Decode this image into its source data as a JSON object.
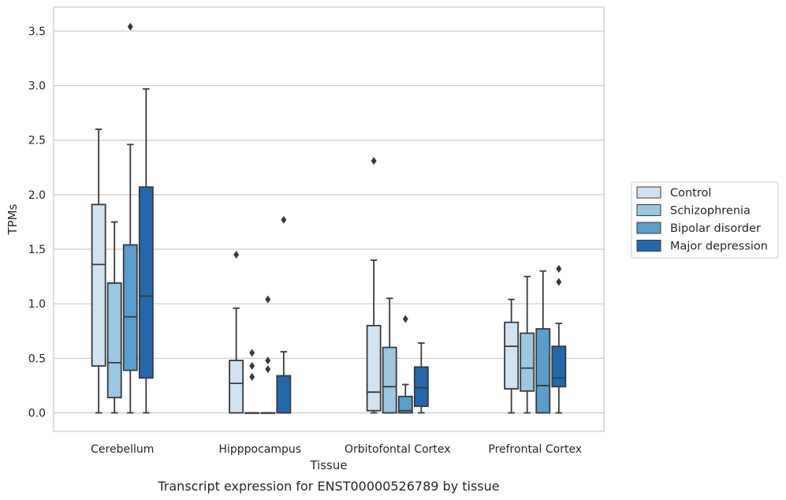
{
  "chart_data": {
    "type": "boxplot",
    "caption": "Transcript expression for ENST00000526789 by tissue",
    "xlabel": "Tissue",
    "ylabel": "TPMs",
    "ylim": [
      -0.17,
      3.72
    ],
    "yticks": [
      0.0,
      0.5,
      1.0,
      1.5,
      2.0,
      2.5,
      3.0,
      3.5
    ],
    "ytick_labels": [
      "0.0",
      "0.5",
      "1.0",
      "1.5",
      "2.0",
      "2.5",
      "3.0",
      "3.5"
    ],
    "grid": true,
    "legend_position": "right",
    "categories": [
      "Cerebellum",
      "Hipppocampus",
      "Orbitofontal Cortex",
      "Prefrontal Cortex"
    ],
    "series": [
      {
        "name": "Control",
        "color": "#d1e2f1",
        "boxes": [
          {
            "whislo": 0.0,
            "q1": 0.43,
            "med": 1.36,
            "q3": 1.91,
            "whishi": 2.6,
            "fliers": []
          },
          {
            "whislo": 0.0,
            "q1": 0.0,
            "med": 0.27,
            "q3": 0.48,
            "whishi": 0.96,
            "fliers": [
              1.45
            ]
          },
          {
            "whislo": 0.0,
            "q1": 0.02,
            "med": 0.19,
            "q3": 0.8,
            "whishi": 1.4,
            "fliers": [
              2.31
            ]
          },
          {
            "whislo": 0.0,
            "q1": 0.22,
            "med": 0.61,
            "q3": 0.83,
            "whishi": 1.04,
            "fliers": []
          }
        ]
      },
      {
        "name": "Schizophrenia",
        "color": "#9ac8e0",
        "boxes": [
          {
            "whislo": 0.0,
            "q1": 0.14,
            "med": 0.46,
            "q3": 1.19,
            "whishi": 1.75,
            "fliers": []
          },
          {
            "whislo": 0.0,
            "q1": 0.0,
            "med": 0.0,
            "q3": 0.0,
            "whishi": 0.0,
            "fliers": [
              0.33,
              0.43,
              0.55
            ]
          },
          {
            "whislo": 0.0,
            "q1": 0.0,
            "med": 0.24,
            "q3": 0.6,
            "whishi": 1.05,
            "fliers": []
          },
          {
            "whislo": 0.0,
            "q1": 0.2,
            "med": 0.41,
            "q3": 0.73,
            "whishi": 1.25,
            "fliers": []
          }
        ]
      },
      {
        "name": "Bipolar disorder",
        "color": "#5a9ecc",
        "boxes": [
          {
            "whislo": 0.0,
            "q1": 0.39,
            "med": 0.88,
            "q3": 1.54,
            "whishi": 2.46,
            "fliers": [
              3.54
            ]
          },
          {
            "whislo": 0.0,
            "q1": 0.0,
            "med": 0.0,
            "q3": 0.0,
            "whishi": 0.0,
            "fliers": [
              0.4,
              0.48,
              1.04
            ]
          },
          {
            "whislo": 0.0,
            "q1": 0.0,
            "med": 0.02,
            "q3": 0.15,
            "whishi": 0.26,
            "fliers": [
              0.86
            ]
          },
          {
            "whislo": 0.0,
            "q1": 0.0,
            "med": 0.25,
            "q3": 0.77,
            "whishi": 1.3,
            "fliers": []
          }
        ]
      },
      {
        "name": "Major depression",
        "color": "#2368ab",
        "boxes": [
          {
            "whislo": 0.0,
            "q1": 0.32,
            "med": 1.07,
            "q3": 2.07,
            "whishi": 2.97,
            "fliers": []
          },
          {
            "whislo": 0.0,
            "q1": 0.0,
            "med": 0.0,
            "q3": 0.34,
            "whishi": 0.56,
            "fliers": [
              1.77
            ]
          },
          {
            "whislo": 0.0,
            "q1": 0.06,
            "med": 0.23,
            "q3": 0.42,
            "whishi": 0.64,
            "fliers": []
          },
          {
            "whislo": 0.0,
            "q1": 0.24,
            "med": 0.32,
            "q3": 0.61,
            "whishi": 0.82,
            "fliers": [
              1.2,
              1.32
            ]
          }
        ]
      }
    ]
  }
}
